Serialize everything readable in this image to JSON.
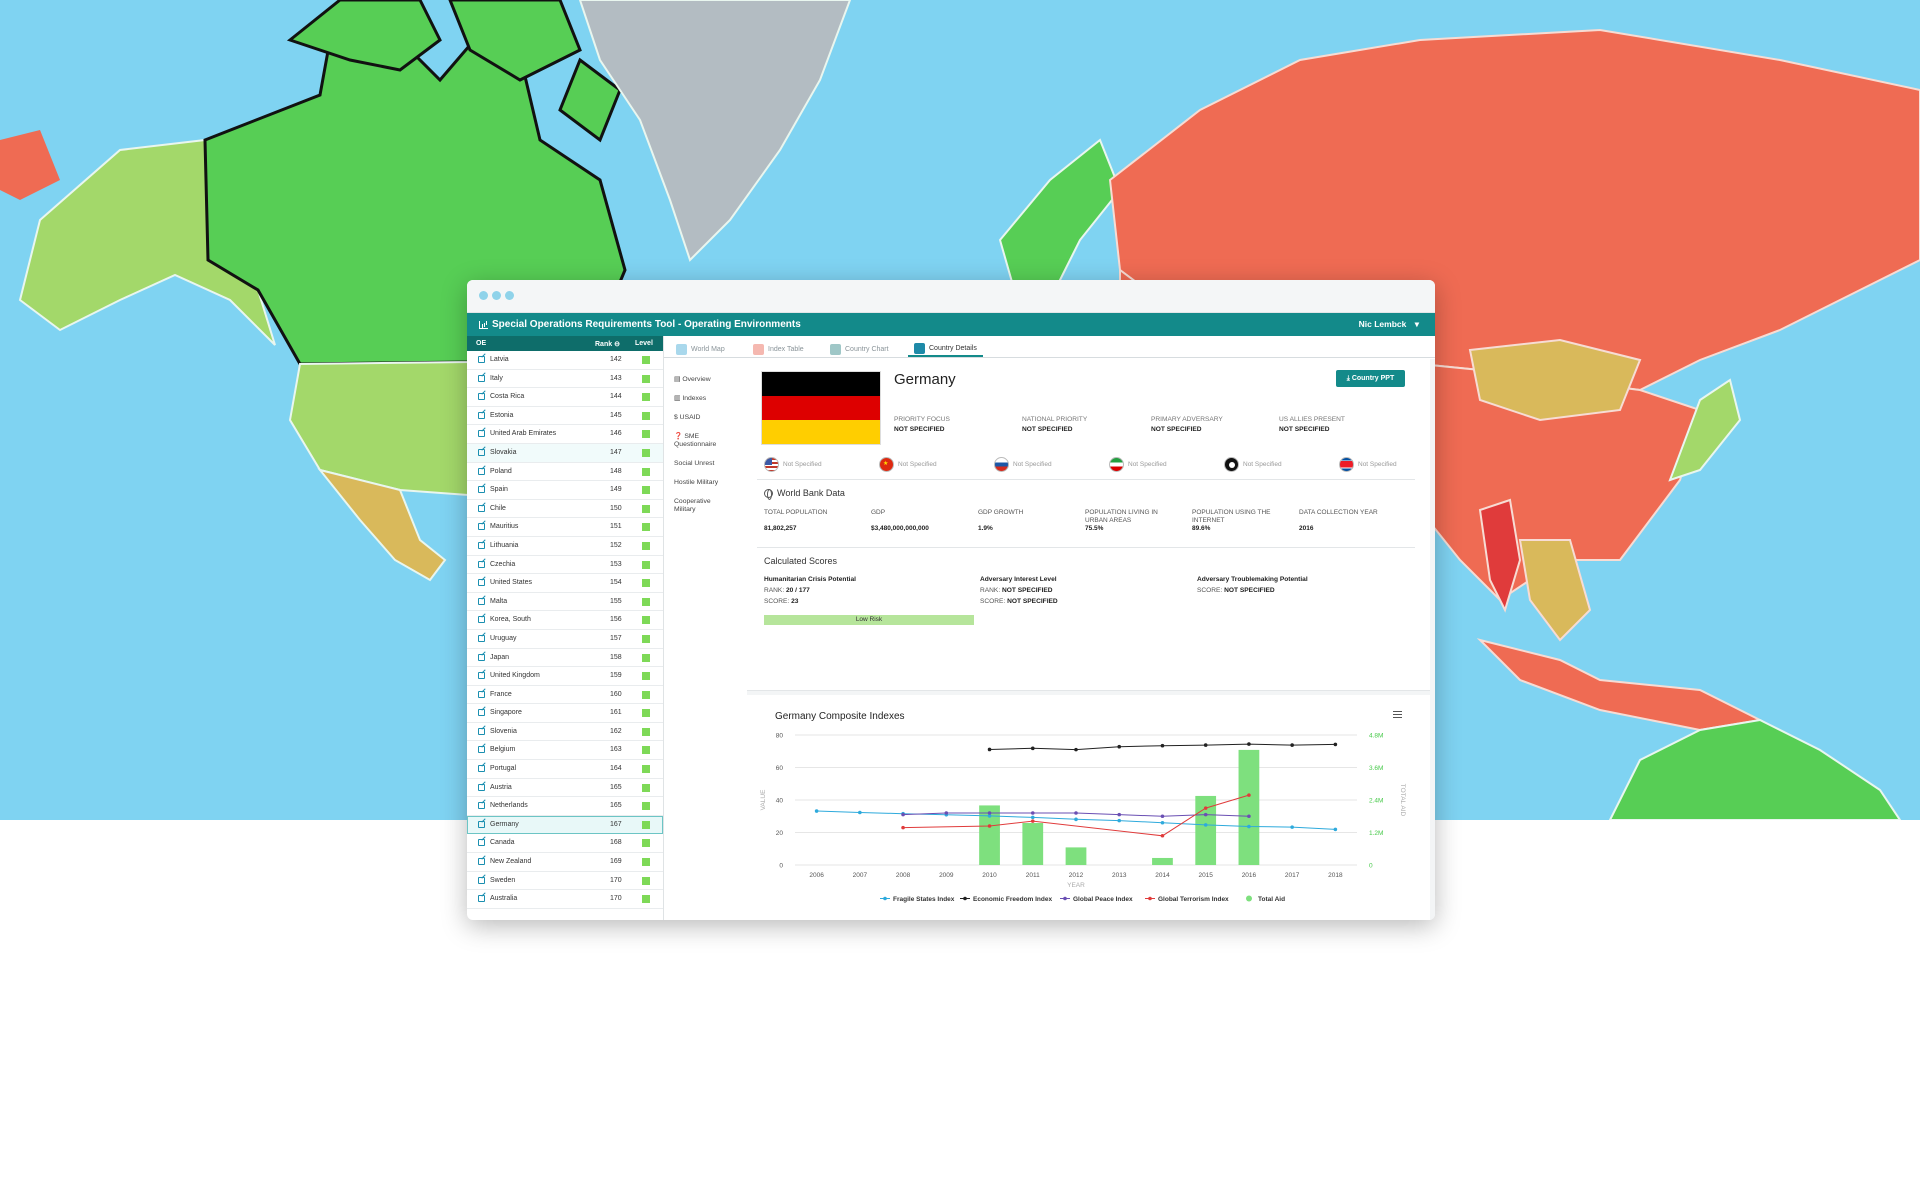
{
  "app": {
    "title": "Special Operations Requirements Tool - Operating Environments",
    "user": "Nic Lembck"
  },
  "oe_table": {
    "headers": {
      "oe": "OE",
      "rank": "Rank",
      "level": "Level"
    },
    "rows": [
      {
        "name": "Latvia",
        "rank": "142"
      },
      {
        "name": "Italy",
        "rank": "143"
      },
      {
        "name": "Costa Rica",
        "rank": "144"
      },
      {
        "name": "Estonia",
        "rank": "145"
      },
      {
        "name": "United Arab Emirates",
        "rank": "146"
      },
      {
        "name": "Slovakia",
        "rank": "147"
      },
      {
        "name": "Poland",
        "rank": "148"
      },
      {
        "name": "Spain",
        "rank": "149"
      },
      {
        "name": "Chile",
        "rank": "150"
      },
      {
        "name": "Mauritius",
        "rank": "151"
      },
      {
        "name": "Lithuania",
        "rank": "152"
      },
      {
        "name": "Czechia",
        "rank": "153"
      },
      {
        "name": "United States",
        "rank": "154"
      },
      {
        "name": "Malta",
        "rank": "155"
      },
      {
        "name": "Korea, South",
        "rank": "156"
      },
      {
        "name": "Uruguay",
        "rank": "157"
      },
      {
        "name": "Japan",
        "rank": "158"
      },
      {
        "name": "United Kingdom",
        "rank": "159"
      },
      {
        "name": "France",
        "rank": "160"
      },
      {
        "name": "Singapore",
        "rank": "161"
      },
      {
        "name": "Slovenia",
        "rank": "162"
      },
      {
        "name": "Belgium",
        "rank": "163"
      },
      {
        "name": "Portugal",
        "rank": "164"
      },
      {
        "name": "Austria",
        "rank": "165"
      },
      {
        "name": "Netherlands",
        "rank": "165"
      },
      {
        "name": "Germany",
        "rank": "167"
      },
      {
        "name": "Canada",
        "rank": "168"
      },
      {
        "name": "New Zealand",
        "rank": "169"
      },
      {
        "name": "Sweden",
        "rank": "170"
      },
      {
        "name": "Australia",
        "rank": "170"
      }
    ],
    "selected_index": 25,
    "level_color": "#7ed957"
  },
  "tabs": [
    {
      "label": "World Map",
      "icon": "map-icon"
    },
    {
      "label": "Index Table",
      "icon": "table-icon"
    },
    {
      "label": "Country Chart",
      "icon": "chart-icon"
    },
    {
      "label": "Country Details",
      "icon": "details-icon"
    }
  ],
  "side_menu": [
    {
      "label": "Overview"
    },
    {
      "label": "Indexes"
    },
    {
      "label": "USAID"
    },
    {
      "label": "SME Questionnaire"
    },
    {
      "label": "Social Unrest"
    },
    {
      "label": "Hostile Military"
    },
    {
      "label": "Cooperative Military"
    }
  ],
  "country": {
    "name": "Germany",
    "ppt_button": "Country PPT",
    "flag_colors": [
      "#000000",
      "#dd0000",
      "#ffce00"
    ],
    "priorities": [
      {
        "label": "PRIORITY FOCUS",
        "value": "NOT SPECIFIED"
      },
      {
        "label": "NATIONAL PRIORITY",
        "value": "NOT SPECIFIED"
      },
      {
        "label": "PRIMARY ADVERSARY",
        "value": "NOT SPECIFIED"
      },
      {
        "label": "US ALLIES PRESENT",
        "value": "NOT SPECIFIED"
      }
    ],
    "flag_notes": [
      {
        "country_icon": "us-flag-icon",
        "text": "Not Specified"
      },
      {
        "country_icon": "china-flag-icon",
        "text": "Not Specified"
      },
      {
        "country_icon": "russia-flag-icon",
        "text": "Not Specified"
      },
      {
        "country_icon": "iran-flag-icon",
        "text": "Not Specified"
      },
      {
        "country_icon": "isis-flag-icon",
        "text": "Not Specified"
      },
      {
        "country_icon": "north-korea-flag-icon",
        "text": "Not Specified"
      }
    ]
  },
  "world_bank": {
    "title": "World Bank Data",
    "fields": [
      {
        "label": "TOTAL POPULATION",
        "value": "81,802,257"
      },
      {
        "label": "GDP",
        "value": "$3,480,000,000,000"
      },
      {
        "label": "GDP GROWTH",
        "value": "1.9%"
      },
      {
        "label": "POPULATION LIVING IN URBAN AREAS",
        "value": "75.5%"
      },
      {
        "label": "POPULATION USING THE INTERNET",
        "value": "89.6%"
      },
      {
        "label": "DATA COLLECTION YEAR",
        "value": "2016"
      }
    ]
  },
  "scores": {
    "title": "Calculated Scores",
    "humanitarian": {
      "title": "Humanitarian Crisis Potential",
      "rank_label": "RANK:",
      "rank": "20 / 177",
      "score_label": "SCORE:",
      "score": "23",
      "risk": "Low Risk"
    },
    "adversary_interest": {
      "title": "Adversary Interest Level",
      "rank_label": "RANK:",
      "rank": "NOT SPECIFIED",
      "score_label": "SCORE:",
      "score": "NOT SPECIFIED"
    },
    "adversary_trouble": {
      "title": "Adversary Troublemaking Potential",
      "score_label": "SCORE:",
      "score": "NOT SPECIFIED"
    }
  },
  "chart_data": {
    "type": "line",
    "title": "Germany Composite Indexes",
    "xlabel": "YEAR",
    "ylabel": "VALUE",
    "y2label": "TOTAL AID",
    "x": [
      2006,
      2007,
      2008,
      2009,
      2010,
      2011,
      2012,
      2013,
      2014,
      2015,
      2016,
      2017,
      2018
    ],
    "ylim": [
      0,
      80
    ],
    "yticks": [
      "0",
      "20",
      "40",
      "60",
      "80"
    ],
    "y2lim": [
      0,
      4800000
    ],
    "y2ticks": [
      "0",
      "1.2M",
      "2.4M",
      "3.6M",
      "4.8M"
    ],
    "series": [
      {
        "name": "Fragile States Index",
        "kind": "line",
        "color": "#2eaadc",
        "values": [
          33.2,
          32.3,
          31.6,
          30.9,
          30.2,
          29.3,
          28.1,
          27.3,
          26.0,
          24.7,
          23.7,
          23.3,
          21.9
        ]
      },
      {
        "name": "Economic Freedom Index",
        "kind": "line",
        "color": "#222222",
        "values": [
          null,
          null,
          null,
          null,
          71.1,
          71.8,
          71.0,
          72.8,
          73.4,
          73.8,
          74.4,
          73.8,
          74.2
        ]
      },
      {
        "name": "Global Peace Index",
        "kind": "line",
        "color": "#6a4fb3",
        "values": [
          null,
          null,
          31.0,
          32.0,
          32.0,
          32.0,
          32.0,
          31.0,
          30.0,
          31.0,
          30.0,
          null,
          null
        ]
      },
      {
        "name": "Global Terrorism Index",
        "kind": "line",
        "color": "#e03b3b",
        "values": [
          null,
          null,
          23.0,
          null,
          24.0,
          27.0,
          null,
          null,
          18.0,
          35.0,
          43.0,
          null,
          null
        ]
      },
      {
        "name": "Total Aid",
        "kind": "bar",
        "axis": "y2",
        "color": "#7ee07e",
        "values": [
          null,
          null,
          null,
          null,
          2200000,
          1550000,
          650000,
          null,
          260000,
          2550000,
          4250000,
          null,
          null
        ]
      }
    ]
  }
}
